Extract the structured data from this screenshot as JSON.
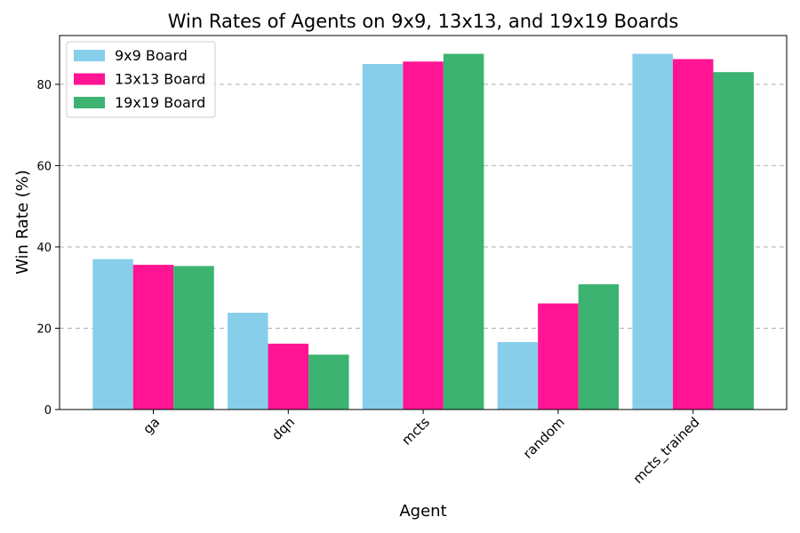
{
  "chart_data": {
    "type": "bar",
    "title": "Win Rates of Agents on 9x9, 13x13, and 19x19 Boards",
    "xlabel": "Agent",
    "ylabel": "Win Rate (%)",
    "categories": [
      "ga",
      "dqn",
      "mcts",
      "random",
      "mcts_trained"
    ],
    "series": [
      {
        "name": "9x9 Board",
        "color": "#87CEEB",
        "values": [
          37.0,
          23.8,
          85.0,
          16.6,
          87.5
        ]
      },
      {
        "name": "13x13 Board",
        "color": "#FF1493",
        "values": [
          35.6,
          16.2,
          85.6,
          26.1,
          86.2
        ]
      },
      {
        "name": "19x19 Board",
        "color": "#3CB371",
        "values": [
          35.3,
          13.5,
          87.5,
          30.8,
          83.0
        ]
      }
    ],
    "ylim": [
      0,
      92
    ],
    "yticks": [
      0,
      20,
      40,
      60,
      80
    ],
    "grid": true,
    "legend_position": "upper-left"
  }
}
